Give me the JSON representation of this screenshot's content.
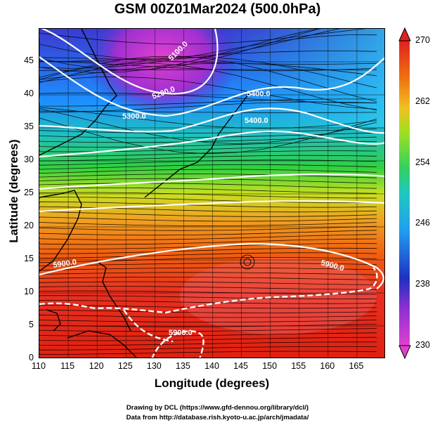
{
  "title": "GSM 00Z01Mar2024 (500.0hPa)",
  "xaxis": {
    "label": "Longitude (degrees)",
    "ticks": [
      "110",
      "115",
      "120",
      "125",
      "130",
      "135",
      "140",
      "145",
      "150",
      "155",
      "160",
      "165"
    ],
    "range": [
      110,
      170
    ]
  },
  "yaxis": {
    "label": "Latitude  (degrees)",
    "ticks": [
      "0",
      "5",
      "10",
      "15",
      "20",
      "25",
      "30",
      "35",
      "40",
      "45"
    ],
    "range": [
      0,
      50
    ]
  },
  "colorbar": {
    "ticks": [
      "270",
      "262",
      "254",
      "246",
      "238",
      "230"
    ],
    "range": [
      230,
      270
    ],
    "colors": [
      "#e040d0",
      "#2030c0",
      "#20a0f0",
      "#30d060",
      "#f0e020",
      "#f07010",
      "#e02020"
    ]
  },
  "contours": {
    "labels": [
      "5100.0",
      "5200.0",
      "5300.0",
      "5400.0",
      "5400.0",
      "5900.0",
      "5900.0",
      "5900.0"
    ],
    "color": "#ffffff"
  },
  "credits": [
    "Drawing by DCL (https://www.gfd-dennou.org/library/dcl/)",
    "Data from http://database.rish.kyoto-u.ac.jp/arch/jmadata/"
  ]
}
